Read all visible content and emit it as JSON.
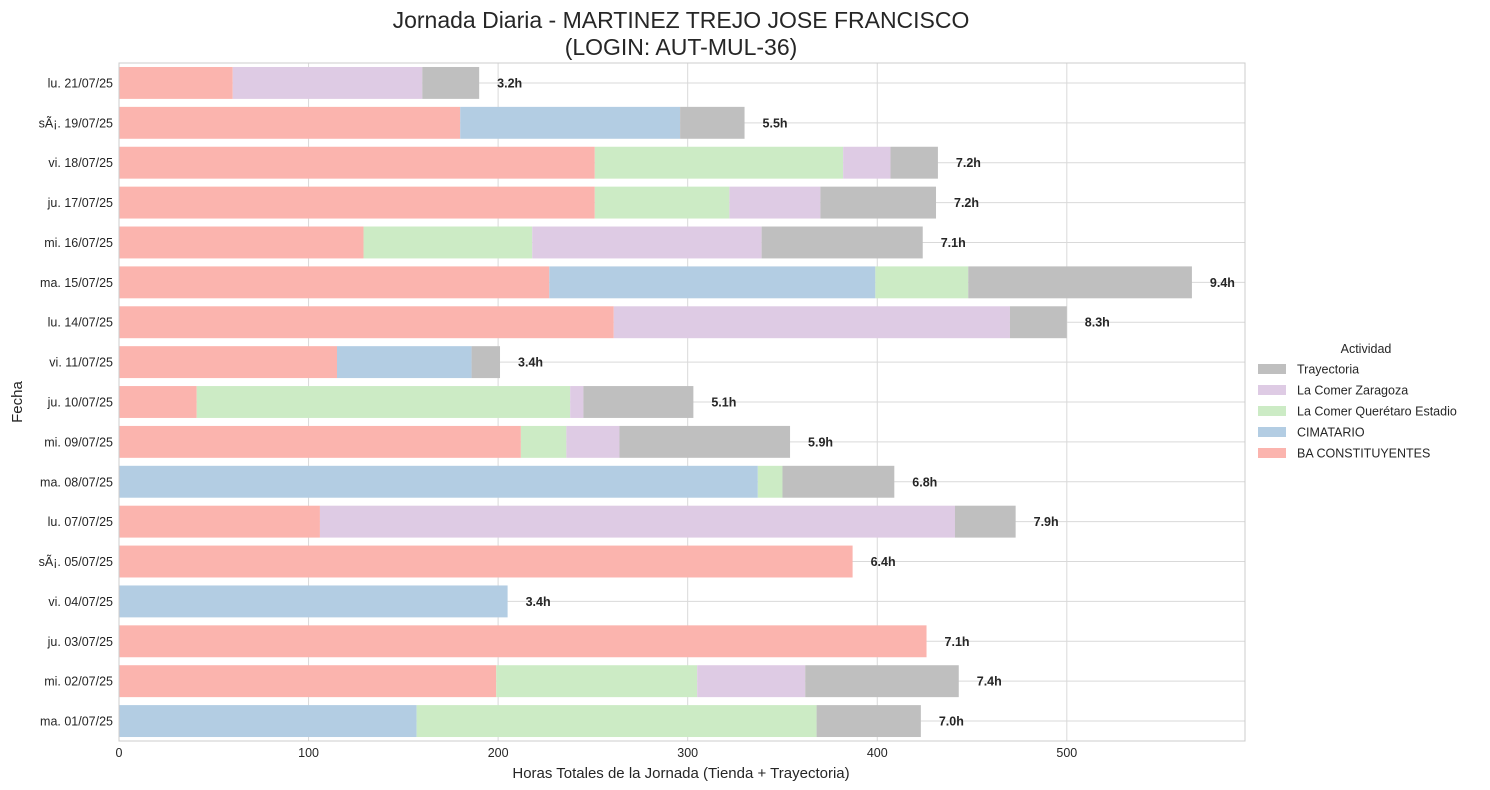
{
  "chart_data": {
    "type": "bar",
    "orientation": "horizontal",
    "stacked": true,
    "title": "Jornada Diaria - MARTINEZ TREJO JOSE FRANCISCO",
    "subtitle": "(LOGIN: AUT-MUL-36)",
    "xlabel": "Horas Totales de la Jornada (Tienda + Trayectoria)",
    "ylabel": "Fecha",
    "xlim": [
      0,
      594
    ],
    "xticks": [
      0,
      100,
      200,
      300,
      400,
      500
    ],
    "grid": true,
    "legend": {
      "title": "Actividad",
      "position": "right"
    },
    "categories": [
      "lu. 21/07/25",
      "sÃ¡. 19/07/25",
      "vi. 18/07/25",
      "ju. 17/07/25",
      "mi. 16/07/25",
      "ma. 15/07/25",
      "lu. 14/07/25",
      "vi. 11/07/25",
      "ju. 10/07/25",
      "mi. 09/07/25",
      "ma. 08/07/25",
      "lu. 07/07/25",
      "sÃ¡. 05/07/25",
      "vi. 04/07/25",
      "ju. 03/07/25",
      "mi. 02/07/25",
      "ma. 01/07/25"
    ],
    "stack_order": [
      "BA CONSTITUYENTES",
      "CIMATARIO",
      "La Comer Querétaro Estadio",
      "La Comer Zaragoza",
      "Trayectoria"
    ],
    "series": [
      {
        "name": "Trayectoria",
        "color": "#bfbfbf",
        "values": [
          30,
          34,
          25,
          61,
          85,
          118,
          30,
          15,
          58,
          90,
          59,
          32,
          0,
          0,
          0,
          81,
          55
        ]
      },
      {
        "name": "La Comer Zaragoza",
        "color": "#decbe4",
        "values": [
          100,
          0,
          25,
          48,
          121,
          0,
          209,
          0,
          7,
          28,
          0,
          335,
          0,
          0,
          0,
          57,
          0
        ]
      },
      {
        "name": "La Comer Querétaro Estadio",
        "color": "#ccebc5",
        "values": [
          0,
          0,
          131,
          71,
          89,
          49,
          0,
          0,
          197,
          24,
          13,
          0,
          0,
          0,
          0,
          106,
          211
        ]
      },
      {
        "name": "CIMATARIO",
        "color": "#b3cde3",
        "values": [
          0,
          116,
          0,
          0,
          0,
          172,
          0,
          71,
          0,
          0,
          337,
          0,
          0,
          205,
          0,
          0,
          157
        ]
      },
      {
        "name": "BA CONSTITUYENTES",
        "color": "#fbb4ae",
        "values": [
          60,
          180,
          251,
          251,
          129,
          227,
          261,
          115,
          41,
          212,
          0,
          106,
          387,
          0,
          426,
          199,
          0
        ]
      }
    ],
    "data_labels": [
      "3.2h",
      "5.5h",
      "7.2h",
      "7.2h",
      "7.1h",
      "9.4h",
      "8.3h",
      "3.4h",
      "5.1h",
      "5.9h",
      "6.8h",
      "7.9h",
      "6.4h",
      "3.4h",
      "7.1h",
      "7.4h",
      "7.0h"
    ]
  }
}
